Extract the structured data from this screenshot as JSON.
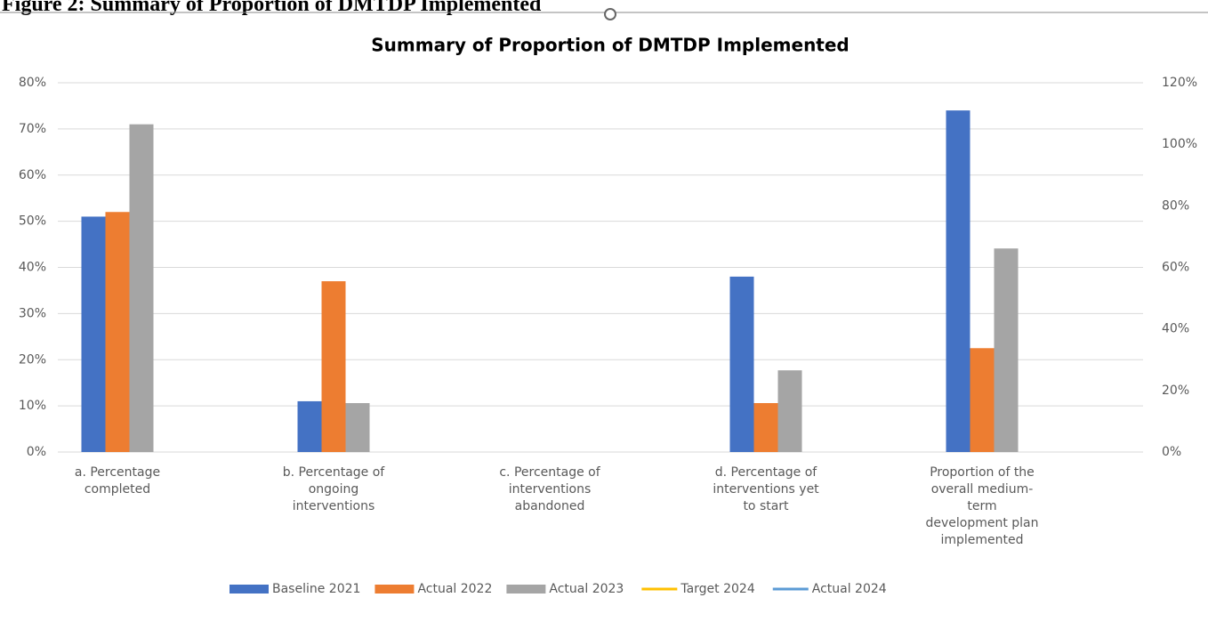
{
  "chart_data": {
    "type": "bar",
    "caption": "Figure 2: Summary of Proportion of DMTDP Implemented",
    "title": "Summary of Proportion of DMTDP Implemented",
    "categories": [
      "a. Percentage completed",
      "b. Percentage of ongoing interventions",
      "c. Percentage of interventions abandoned",
      "d. Percentage of interventions yet to start",
      "Proportion of the overall medium-term development plan implemented"
    ],
    "series": [
      {
        "name": "Baseline 2021",
        "color": "#4472c4",
        "type": "bar",
        "values": [
          51,
          11,
          0,
          38,
          74
        ]
      },
      {
        "name": "Actual 2022",
        "color": "#ed7d31",
        "type": "bar",
        "values": [
          52,
          37,
          0,
          10.6,
          22.5
        ]
      },
      {
        "name": "Actual 2023",
        "color": "#a5a5a5",
        "type": "bar",
        "values": [
          71,
          10.6,
          0,
          17.7,
          44.1
        ]
      },
      {
        "name": "Target 2024",
        "color": "#ffc000",
        "type": "line",
        "axis": "y2",
        "values": [
          null,
          null,
          null,
          null,
          null
        ]
      },
      {
        "name": "Actual 2024",
        "color": "#5b9bd5",
        "type": "line",
        "axis": "y2",
        "values": [
          null,
          null,
          null,
          null,
          null
        ]
      }
    ],
    "ylim": [
      0,
      80
    ],
    "yticks": [
      {
        "value": 0,
        "label": "0%"
      },
      {
        "value": 10,
        "label": "10%"
      },
      {
        "value": 20,
        "label": "20%"
      },
      {
        "value": 30,
        "label": "30%"
      },
      {
        "value": 40,
        "label": "40%"
      },
      {
        "value": 50,
        "label": "50%"
      },
      {
        "value": 60,
        "label": "60%"
      },
      {
        "value": 70,
        "label": "70%"
      },
      {
        "value": 80,
        "label": "80%"
      }
    ],
    "y2lim": [
      0,
      120
    ],
    "y2ticks": [
      {
        "value": 0,
        "label": "0%"
      },
      {
        "value": 20,
        "label": "20%"
      },
      {
        "value": 40,
        "label": "40%"
      },
      {
        "value": 60,
        "label": "60%"
      },
      {
        "value": 80,
        "label": "80%"
      },
      {
        "value": 100,
        "label": "100%"
      },
      {
        "value": 120,
        "label": "120%"
      }
    ],
    "grid": true,
    "legend": "bottom"
  }
}
